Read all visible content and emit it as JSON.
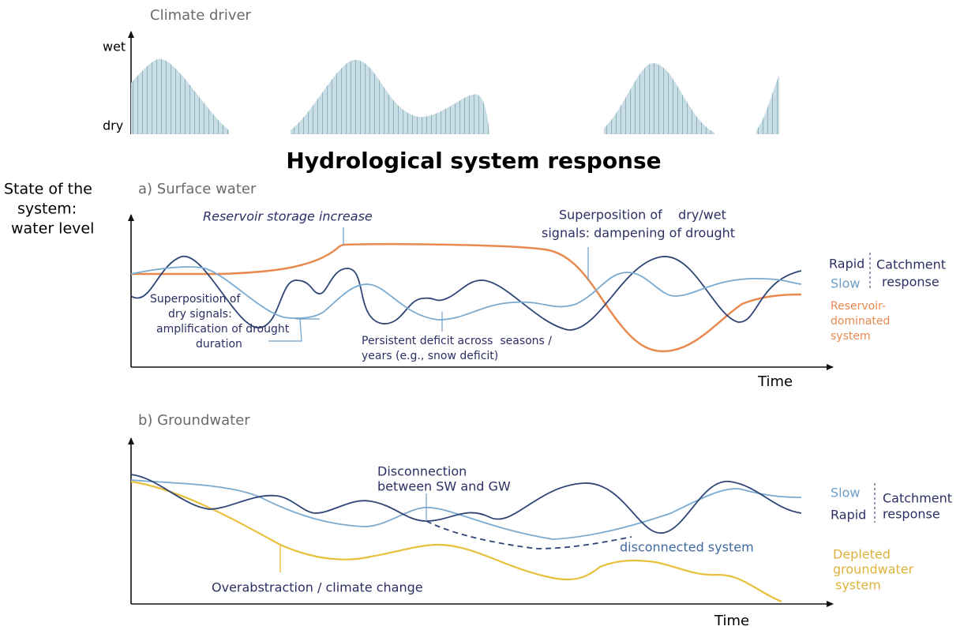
{
  "climate_driver": {
    "title": "Climate driver",
    "wet": "wet",
    "dry": "dry"
  },
  "title": "Hydrological system response",
  "y_label": [
    "State of the",
    "system:",
    "water level"
  ],
  "surface": {
    "title": "a) Surface water",
    "reservoir_note": "Reservoir storage increase",
    "dampening_note": [
      "Superposition of    dry/wet",
      "signals: dampening of drought"
    ],
    "amplification_note": [
      "Superposition of",
      "dry signals:",
      "amplification of drought",
      "duration"
    ],
    "persistent_note": [
      "Persistent deficit across  seasons /",
      "years (e.g., snow deficit)"
    ],
    "legend": {
      "rapid": "Rapid",
      "slow": "Slow",
      "catchment": [
        "Catchment",
        "response"
      ],
      "reservoir": [
        "Reservoir-",
        "dominated",
        "system"
      ]
    },
    "x_label": "Time"
  },
  "groundwater": {
    "title": "b) Groundwater",
    "disconnection_note": [
      "Disconnection",
      "between SW and GW"
    ],
    "disconnected_note": "disconnected system",
    "overabstraction_note": "Overabstraction / climate change",
    "legend": {
      "slow": "Slow",
      "rapid": "Rapid",
      "catchment": [
        "Catchment",
        "response"
      ],
      "depleted": [
        "Depleted",
        "groundwater",
        "system"
      ]
    },
    "x_label": "Time"
  }
}
